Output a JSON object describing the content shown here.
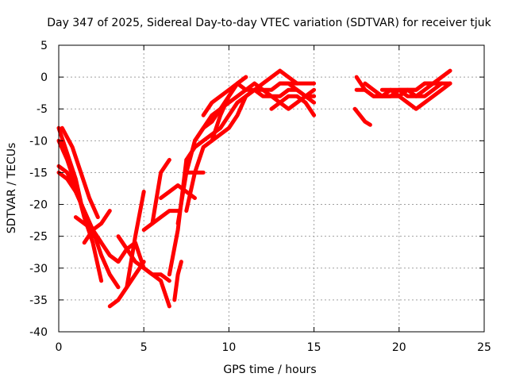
{
  "chart_data": {
    "type": "scatter",
    "title": "Day 347 of 2025, Sidereal Day-to-day VTEC variation (SDTVAR) for receiver tjuk",
    "xlabel": "GPS time / hours",
    "ylabel": "SDTVAR / TECUs",
    "xlim": [
      0,
      25
    ],
    "ylim": [
      -40,
      5
    ],
    "xticks": [
      0,
      5,
      10,
      15,
      20,
      25
    ],
    "yticks": [
      5,
      0,
      -5,
      -10,
      -15,
      -20,
      -25,
      -30,
      -35,
      -40
    ],
    "xtick_labels": [
      "0",
      "5",
      "10",
      "15",
      "20",
      "25"
    ],
    "ytick_labels": [
      "5",
      "0",
      "-5",
      "-10",
      "-15",
      "-20",
      "-25",
      "-30",
      "-35",
      "-40"
    ],
    "grid": true,
    "marker_color": "#ff0000",
    "series": [
      {
        "x": [
          0.0,
          0.5,
          1.0,
          1.5,
          2.0,
          2.5
        ],
        "y": [
          -8,
          -12,
          -16,
          -22,
          -26,
          -32
        ]
      },
      {
        "x": [
          0.0,
          0.5,
          1.0,
          1.5,
          2.0
        ],
        "y": [
          -10,
          -13,
          -17,
          -22,
          -25
        ]
      },
      {
        "x": [
          0.0,
          0.5,
          1.0,
          1.5,
          2.0,
          2.5
        ],
        "y": [
          -14,
          -15,
          -18,
          -21,
          -24,
          -26
        ]
      },
      {
        "x": [
          0.0,
          0.5,
          1.0,
          1.5,
          2.0,
          2.5,
          3.0,
          3.5
        ],
        "y": [
          -15,
          -16,
          -18,
          -21,
          -24,
          -28,
          -31,
          -33
        ]
      },
      {
        "x": [
          0.2,
          0.8,
          1.3,
          1.8,
          2.3
        ],
        "y": [
          -8,
          -11,
          -15,
          -19,
          -22
        ]
      },
      {
        "x": [
          1.0,
          1.5,
          2.0,
          2.5,
          3.0,
          3.5,
          4.0,
          4.5,
          5.0,
          5.5,
          6.0,
          6.5
        ],
        "y": [
          -22,
          -23,
          -24,
          -26,
          -28,
          -29,
          -27,
          -26,
          -30,
          -31,
          -32,
          -36
        ]
      },
      {
        "x": [
          1.5,
          2.0,
          2.5,
          3.0
        ],
        "y": [
          -26,
          -24,
          -23,
          -21
        ]
      },
      {
        "x": [
          3.0,
          3.5,
          4.0,
          4.5,
          5.0
        ],
        "y": [
          -36,
          -35,
          -33,
          -31,
          -29
        ]
      },
      {
        "x": [
          3.5,
          4.0,
          4.5,
          5.0,
          5.5,
          6.0,
          6.5
        ],
        "y": [
          -25,
          -27,
          -29,
          -30,
          -31,
          -31,
          -32
        ]
      },
      {
        "x": [
          4.0,
          4.5,
          5.0
        ],
        "y": [
          -33,
          -25,
          -18
        ]
      },
      {
        "x": [
          5.0,
          5.5,
          6.0,
          6.5,
          7.0
        ],
        "y": [
          -24,
          -23,
          -22,
          -21,
          -21
        ]
      },
      {
        "x": [
          5.5,
          6.0,
          6.5
        ],
        "y": [
          -23,
          -15,
          -13
        ]
      },
      {
        "x": [
          6.0,
          6.5,
          7.0,
          7.5,
          8.0
        ],
        "y": [
          -19,
          -18,
          -17,
          -18,
          -19
        ]
      },
      {
        "x": [
          6.5,
          7.0,
          7.5
        ],
        "y": [
          -31,
          -24,
          -13
        ]
      },
      {
        "x": [
          6.8,
          7.0,
          7.2
        ],
        "y": [
          -35,
          -31,
          -29
        ]
      },
      {
        "x": [
          7.0,
          7.5,
          8.0,
          8.5,
          9.0,
          9.5,
          10.0,
          10.5,
          11.0
        ],
        "y": [
          -23,
          -15,
          -10,
          -8,
          -7,
          -5,
          -3,
          -1,
          0
        ]
      },
      {
        "x": [
          7.5,
          8.0,
          8.5,
          9.0,
          9.5,
          10.0,
          10.5,
          11.0,
          11.5,
          12.0,
          12.5,
          13.0,
          13.5,
          14.0,
          14.5,
          15.0
        ],
        "y": [
          -21,
          -15,
          -11,
          -10,
          -9,
          -8,
          -6,
          -3,
          -2,
          -2,
          -2,
          -1,
          -1,
          -1,
          -1,
          -1
        ]
      },
      {
        "x": [
          7.5,
          8.0,
          8.5,
          9.0,
          9.5,
          10.0,
          10.5,
          11.0,
          11.5,
          12.0,
          12.5,
          13.0,
          13.5,
          14.0
        ],
        "y": [
          -13,
          -11,
          -10,
          -9,
          -8,
          -6,
          -4,
          -3,
          -2,
          -1,
          0,
          1,
          0,
          -1
        ]
      },
      {
        "x": [
          7.5,
          8.0,
          8.5
        ],
        "y": [
          -15,
          -15,
          -15
        ]
      },
      {
        "x": [
          8.0,
          8.5,
          9.0,
          9.5,
          10.0,
          10.5,
          11.0,
          11.5,
          12.0,
          12.5,
          13.0,
          13.5,
          14.0,
          14.5,
          15.0
        ],
        "y": [
          -10,
          -8,
          -6,
          -5,
          -4,
          -3,
          -2,
          -1,
          -2,
          -3,
          -3,
          -2,
          -2,
          -3,
          -3
        ]
      },
      {
        "x": [
          8.5,
          9.0,
          9.5,
          10.0,
          10.5,
          11.0,
          11.5,
          12.0,
          12.5,
          13.0,
          13.5,
          14.0,
          14.5,
          15.0
        ],
        "y": [
          -6,
          -4,
          -3,
          -2,
          -1,
          -2,
          -2,
          -3,
          -3,
          -4,
          -5,
          -4,
          -3,
          -2
        ]
      },
      {
        "x": [
          9.0,
          9.5,
          10.0,
          10.5,
          11.0
        ],
        "y": [
          -10,
          -6,
          -3,
          -1,
          0
        ]
      },
      {
        "x": [
          12.5,
          13.0,
          13.5,
          14.0,
          14.5,
          15.0
        ],
        "y": [
          -5,
          -4,
          -3,
          -3,
          -4,
          -6
        ]
      },
      {
        "x": [
          13.0,
          13.5,
          14.0,
          14.5,
          15.0
        ],
        "y": [
          -1,
          -1,
          -2,
          -3,
          -4
        ]
      },
      {
        "x": [
          17.5,
          18.0,
          18.5,
          19.0,
          19.5,
          20.0,
          20.5,
          21.0,
          21.5,
          22.0,
          22.5,
          23.0
        ],
        "y": [
          -2,
          -2,
          -3,
          -3,
          -3,
          -3,
          -2,
          -2,
          -1,
          -1,
          -1,
          -1
        ]
      },
      {
        "x": [
          17.5,
          18.0,
          18.5,
          19.0,
          19.5,
          20.0,
          20.5,
          21.0,
          21.5,
          22.0,
          22.5,
          23.0
        ],
        "y": [
          0,
          -2,
          -3,
          -3,
          -2,
          -2,
          -3,
          -3,
          -2,
          -1,
          0,
          1
        ]
      },
      {
        "x": [
          18.0,
          18.5,
          19.0,
          19.5,
          20.0,
          20.5,
          21.0,
          21.5,
          22.0,
          22.5
        ],
        "y": [
          -1,
          -2,
          -3,
          -3,
          -2,
          -2,
          -3,
          -3,
          -2,
          -1
        ]
      },
      {
        "x": [
          19.0,
          19.5,
          20.0,
          20.5,
          21.0,
          21.5,
          22.0,
          22.5,
          23.0
        ],
        "y": [
          -2,
          -2,
          -3,
          -4,
          -5,
          -4,
          -3,
          -2,
          -1
        ]
      },
      {
        "x": [
          17.4,
          17.7,
          18.0,
          18.3
        ],
        "y": [
          -5,
          -6,
          -7,
          -7.5
        ]
      },
      {
        "x": [
          20.0,
          20.5,
          21.0,
          21.5,
          22.0,
          22.5
        ],
        "y": [
          -2,
          -2,
          -2,
          -1,
          -1,
          -1
        ]
      }
    ]
  }
}
